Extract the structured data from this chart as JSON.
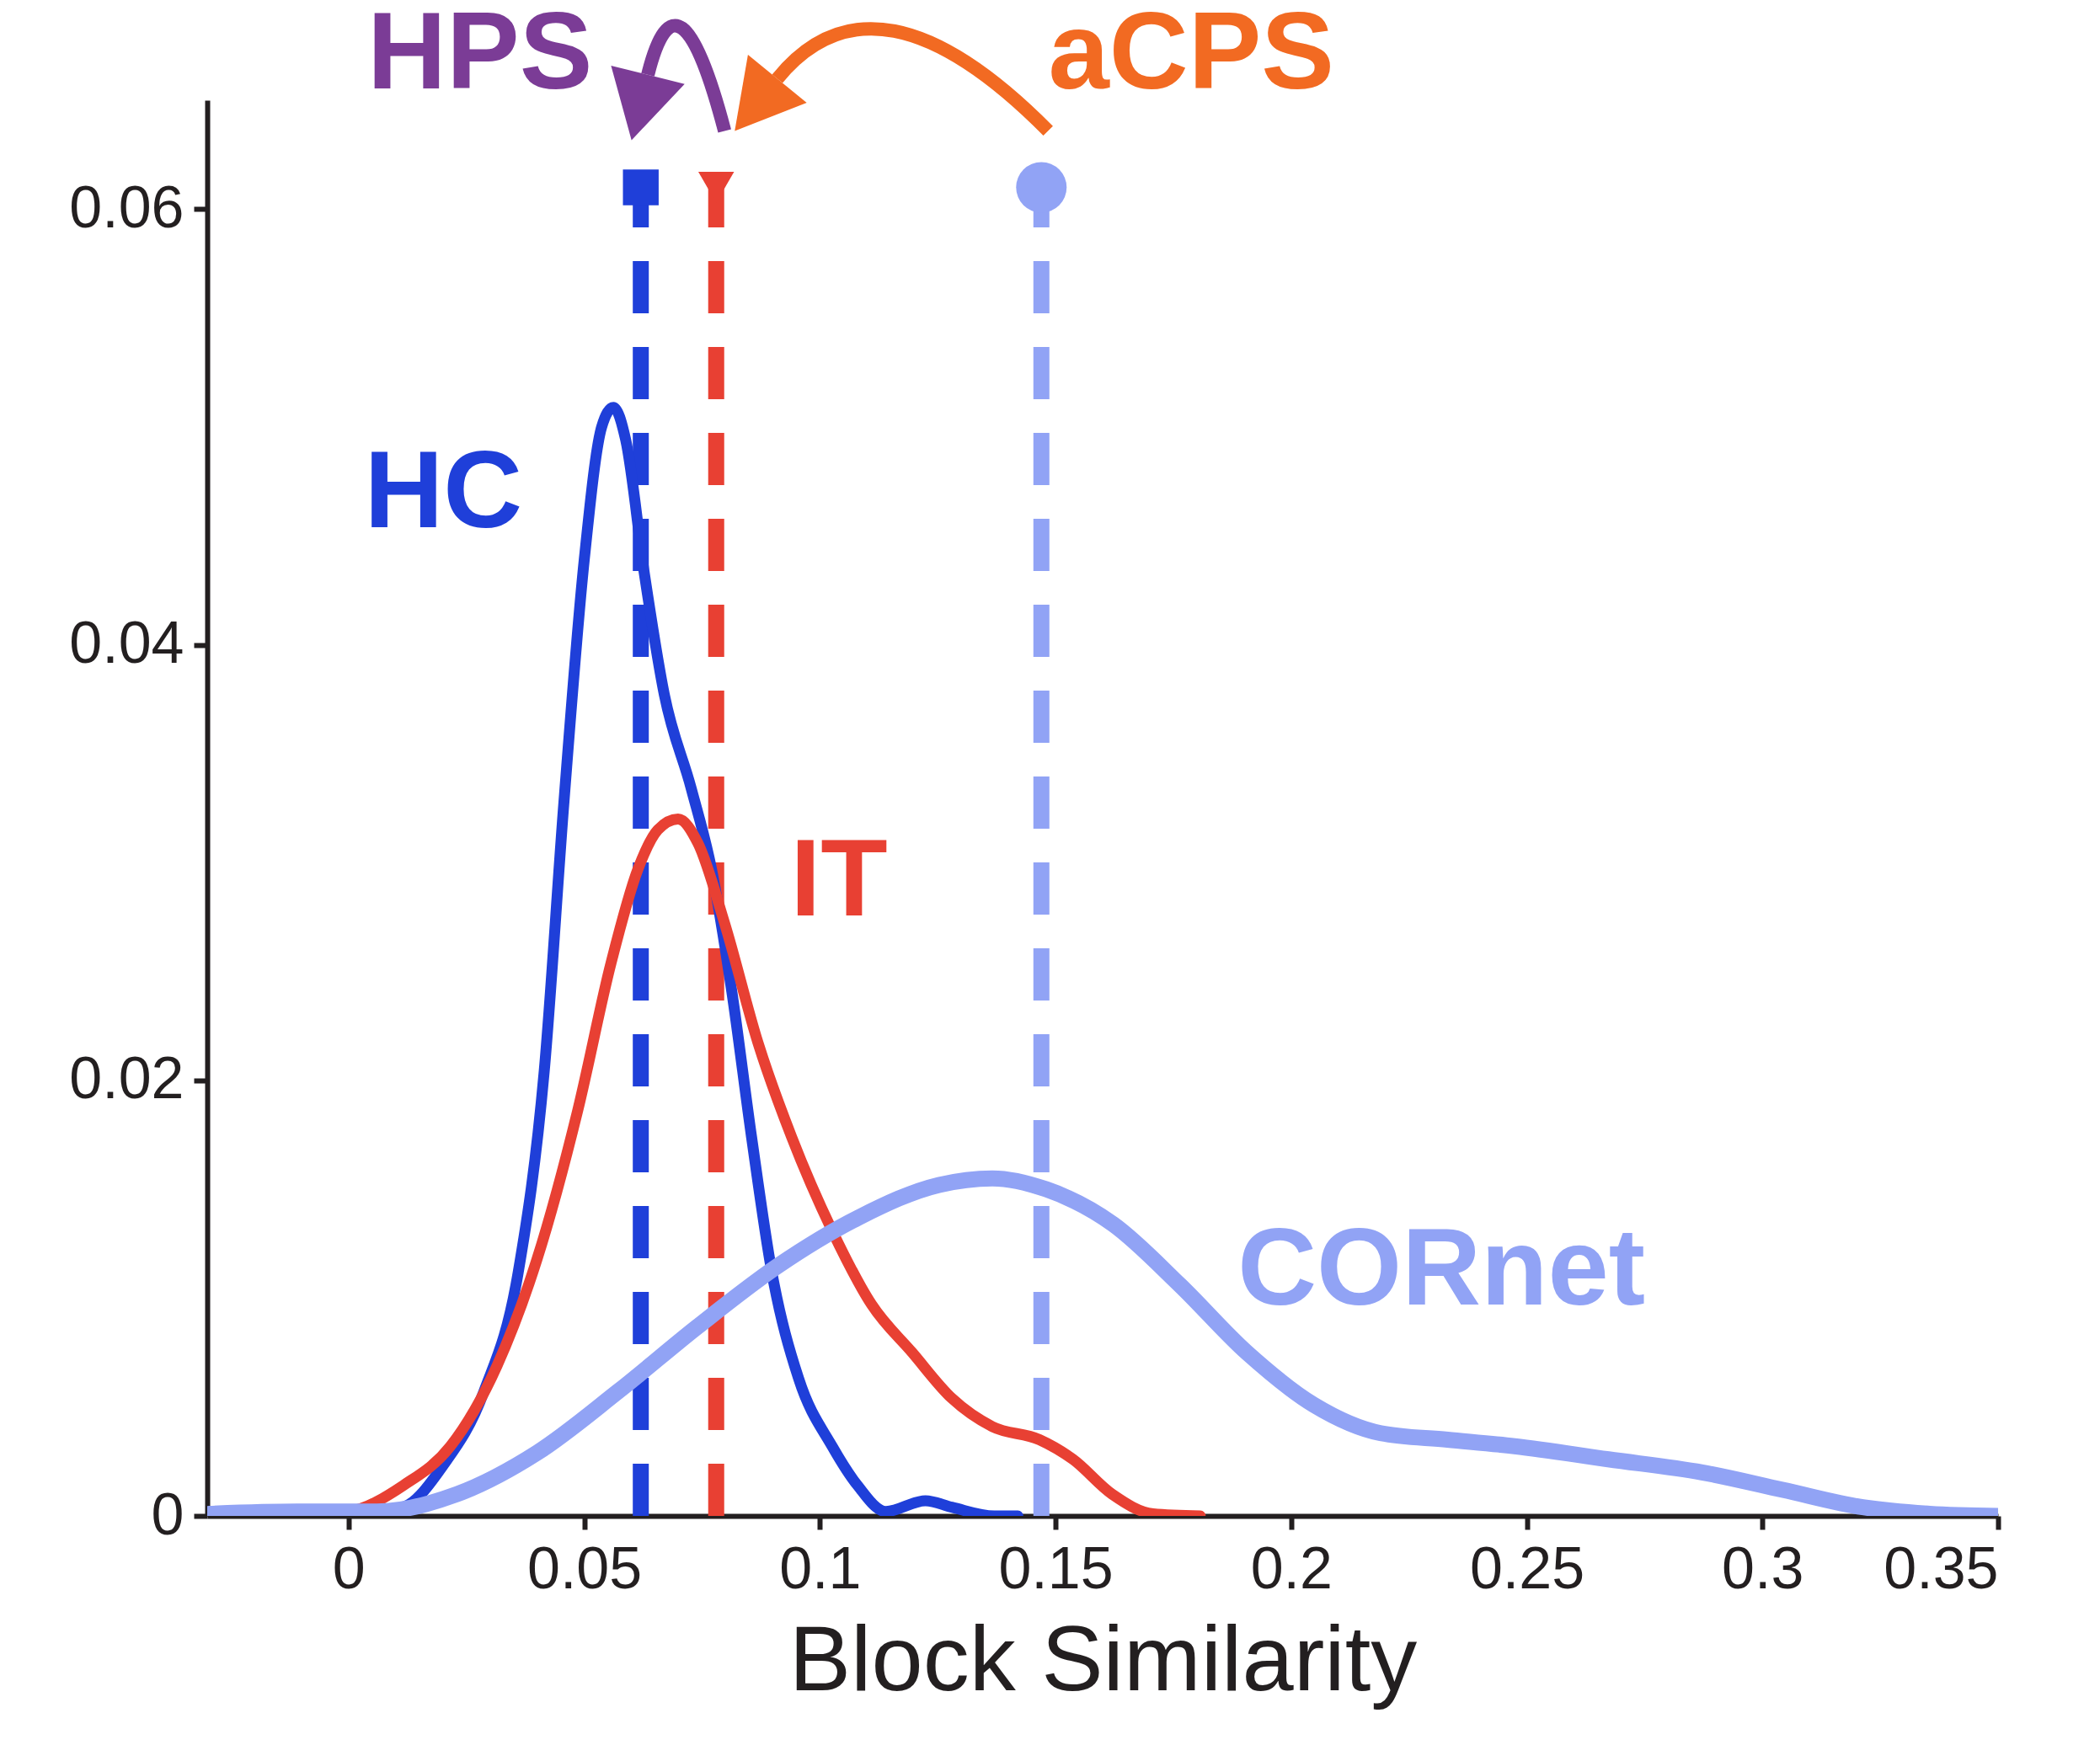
{
  "chart_data": {
    "type": "line",
    "xlabel": "Block Similarity",
    "xlim": [
      -0.03,
      0.35
    ],
    "xticks": [
      0,
      0.05,
      0.1,
      0.15,
      0.2,
      0.25,
      0.3,
      0.35
    ],
    "ylim": [
      0,
      0.065
    ],
    "yticks": [
      0,
      0.02,
      0.04,
      0.06
    ],
    "annotations": [
      "HPS",
      "aCPS"
    ],
    "series": [
      {
        "name": "HC",
        "color": "#1f3fd9",
        "x": [
          0,
          0.0116,
          0.02,
          0.0287,
          0.036,
          0.0415,
          0.0457,
          0.05,
          0.0537,
          0.0562,
          0.0588,
          0.0628,
          0.067,
          0.0727,
          0.077,
          0.0813,
          0.0855,
          0.0898,
          0.0955,
          0.1026,
          0.108,
          0.114,
          0.1224,
          0.128,
          0.137,
          0.142
        ],
        "values": [
          0,
          0.0004,
          0.0023,
          0.0057,
          0.0112,
          0.0204,
          0.0328,
          0.0439,
          0.05,
          0.0509,
          0.0494,
          0.0432,
          0.0377,
          0.0334,
          0.0297,
          0.0241,
          0.0174,
          0.0112,
          0.0063,
          0.0032,
          0.0014,
          0.0002,
          0.0007,
          0.0004,
          0,
          0
        ]
      },
      {
        "name": "IT",
        "color": "#e84033",
        "x": [
          -0.0125,
          0,
          0.0116,
          0.0216,
          0.0315,
          0.04,
          0.0486,
          0.0557,
          0.0614,
          0.0656,
          0.0699,
          0.0741,
          0.0798,
          0.0869,
          0.094,
          0.1026,
          0.111,
          0.1196,
          0.128,
          0.1366,
          0.1466,
          0.1537,
          0.162,
          0.1707,
          0.1807
        ],
        "values": [
          0,
          0.0002,
          0.0014,
          0.0032,
          0.0069,
          0.0118,
          0.0186,
          0.0254,
          0.0297,
          0.0315,
          0.032,
          0.0309,
          0.0272,
          0.0217,
          0.0174,
          0.0131,
          0.0097,
          0.0075,
          0.0054,
          0.0041,
          0.0035,
          0.0026,
          0.001,
          0.0001,
          0
        ]
      },
      {
        "name": "CORnet",
        "color": "#91a3f5",
        "x": [
          -0.0295,
          -0.011,
          0.006,
          0.023,
          0.04,
          0.0571,
          0.0741,
          0.0912,
          0.1082,
          0.1253,
          0.1366,
          0.148,
          0.1622,
          0.1764,
          0.1906,
          0.2048,
          0.219,
          0.2332,
          0.2474,
          0.2673,
          0.2872,
          0.3043,
          0.3213,
          0.3355,
          0.35
        ],
        "values": [
          0.0001,
          0.0002,
          0.0002,
          0.001,
          0.0029,
          0.0057,
          0.0087,
          0.0115,
          0.0137,
          0.0152,
          0.0155,
          0.015,
          0.0134,
          0.0106,
          0.0075,
          0.0051,
          0.0038,
          0.0035,
          0.0032,
          0.0026,
          0.002,
          0.0012,
          0.0004,
          0.0001,
          0
        ]
      },
      {
        "type": "lollipop",
        "color": "#1f3fd9",
        "x": [
          0.062
        ],
        "values": [
          0.061
        ],
        "marker": "square",
        "line_style": "dashed"
      },
      {
        "type": "lollipop",
        "color": "#e84033",
        "x": [
          0.078
        ],
        "values": [
          0.061
        ],
        "marker": "triangle",
        "line_style": "dashed"
      },
      {
        "type": "lollipop",
        "color": "#91a3f5",
        "x": [
          0.147
        ],
        "values": [
          0.061
        ],
        "marker": "circle",
        "line_style": "dashed"
      }
    ]
  }
}
